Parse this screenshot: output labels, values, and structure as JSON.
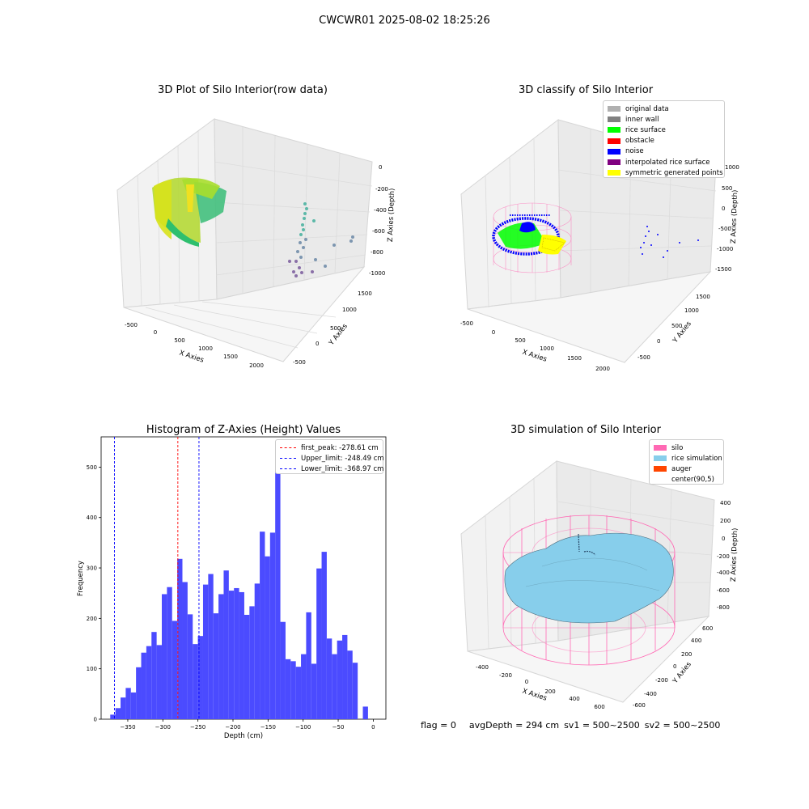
{
  "figure": {
    "suptitle": "CWCWR01 2025-08-02 18:25:26",
    "footer": {
      "flag": "flag = 0",
      "avg_depth": "avgDepth = 294 cm",
      "sv1": "sv1 = 500~2500",
      "sv2": "sv2 = 500~2500"
    }
  },
  "panel1": {
    "title": "3D Plot of Silo Interior(row data)",
    "xlabel": "X Axies",
    "ylabel": "Y Axies",
    "zlabel": "Z Axies (Depth)",
    "xticks": [
      "-500",
      "0",
      "500",
      "1000",
      "1500",
      "2000"
    ],
    "yticks": [
      "-500",
      "0",
      "500",
      "1000",
      "1500"
    ],
    "zticks": [
      "0",
      "-200",
      "-400",
      "-600",
      "-800",
      "-1000"
    ]
  },
  "panel2": {
    "title": "3D classify of Silo Interior",
    "xlabel": "X Axies",
    "ylabel": "Y Axies",
    "zlabel": "Z Axies (Depth)",
    "xticks": [
      "-500",
      "0",
      "500",
      "1000",
      "1500",
      "2000"
    ],
    "yticks": [
      "-500",
      "0",
      "500",
      "1000",
      "1500"
    ],
    "zticks": [
      "1000",
      "500",
      "0",
      "-500",
      "-1000",
      "-1500"
    ],
    "legend": [
      {
        "label": "original data",
        "color": "#b0b0b0"
      },
      {
        "label": "inner wall",
        "color": "#808080"
      },
      {
        "label": "rice surface",
        "color": "#00ff00"
      },
      {
        "label": "obstacle",
        "color": "#ff0000"
      },
      {
        "label": "noise",
        "color": "#0000ff"
      },
      {
        "label": "interpolated rice surface",
        "color": "#800080"
      },
      {
        "label": "symmetric generated points",
        "color": "#ffff00"
      }
    ]
  },
  "panel4": {
    "title": "3D simulation of Silo Interior",
    "xlabel": "X Axies",
    "ylabel": "Y Axies",
    "zlabel": "Z Axies (Depth)",
    "xticks": [
      "-400",
      "-200",
      "0",
      "200",
      "400",
      "600"
    ],
    "yticks": [
      "-600",
      "-400",
      "-200",
      "0",
      "200",
      "400",
      "600"
    ],
    "zticks": [
      "400",
      "200",
      "0",
      "-200",
      "-400",
      "-600",
      "-800"
    ],
    "legend": [
      {
        "label": "silo",
        "color": "#ff69b4"
      },
      {
        "label": "rice simulation",
        "color": "#87ceeb"
      },
      {
        "label": "auger",
        "color": "#ff4500"
      },
      {
        "label": "center(90,5)",
        "color": "#ffffff"
      }
    ]
  },
  "chart_data": [
    {
      "type": "bar",
      "title": "Histogram of Z-Axies (Height) Values",
      "xlabel": "Depth (cm)",
      "ylabel": "Frequency",
      "xlim": [
        -388,
        18
      ],
      "ylim": [
        0,
        560
      ],
      "xticks": [
        -350,
        -300,
        -250,
        -200,
        -150,
        -100,
        -50,
        0
      ],
      "yticks": [
        0,
        100,
        200,
        300,
        400,
        500
      ],
      "bar_color": "#4b4bff",
      "bin_start": -375,
      "bin_width": 7.35,
      "values": [
        9,
        22,
        43,
        62,
        53,
        103,
        132,
        145,
        173,
        147,
        248,
        262,
        195,
        318,
        272,
        208,
        149,
        165,
        267,
        288,
        210,
        248,
        295,
        255,
        260,
        252,
        207,
        224,
        269,
        372,
        323,
        370,
        532,
        193,
        119,
        115,
        104,
        129,
        212,
        110,
        299,
        332,
        160,
        129,
        156,
        167,
        136,
        112,
        0,
        25
      ],
      "lines": [
        {
          "label": "first_peak: -278.61 cm",
          "x": -278.61,
          "color": "#ff0000"
        },
        {
          "label": "Upper_limit: -248.49 cm",
          "x": -248.49,
          "color": "#0000ff"
        },
        {
          "label": "Lower_limit: -368.97 cm",
          "x": -368.97,
          "color": "#0000ff"
        }
      ],
      "legend_position": "upper right"
    }
  ]
}
